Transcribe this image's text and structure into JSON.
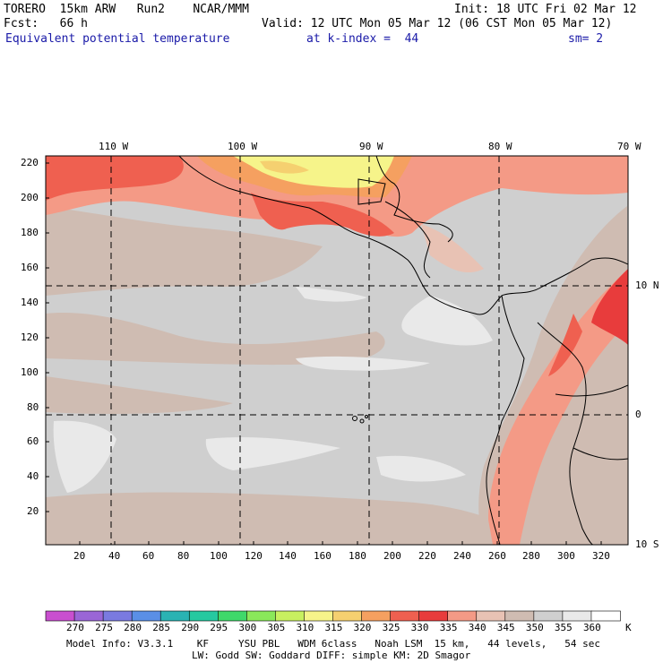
{
  "header": {
    "model": "TORERO  15km ARW   Run2    NCAR/MMM",
    "init": "Init: 18 UTC Fri 02 Mar 12",
    "fcst": "Fcst:   66 h",
    "valid": "Valid: 12 UTC Mon 05 Mar 12 (06 CST Mon 05 Mar 12)",
    "field": "Equivalent potential temperature",
    "kindex": "at k-index =  44",
    "smoothing": "sm= 2"
  },
  "map": {
    "top_lon_labels": [
      "110 W",
      "100 W",
      "90 W",
      "80 W",
      "70 W"
    ],
    "right_lat_labels": [
      "10 N",
      "0",
      "10 S"
    ],
    "x_ticks": [
      "20",
      "40",
      "60",
      "80",
      "100",
      "120",
      "140",
      "160",
      "180",
      "200",
      "220",
      "240",
      "260",
      "280",
      "300",
      "320"
    ],
    "y_ticks": [
      "20",
      "40",
      "60",
      "80",
      "100",
      "120",
      "140",
      "160",
      "180",
      "200",
      "220"
    ]
  },
  "colorbar": {
    "unit": "K",
    "labels": [
      "270",
      "275",
      "280",
      "285",
      "290",
      "295",
      "300",
      "305",
      "310",
      "315",
      "320",
      "325",
      "330",
      "335",
      "340",
      "345",
      "350",
      "355",
      "360"
    ],
    "colors": [
      "#c94fcf",
      "#9a66d6",
      "#7a7ae0",
      "#5a8fe6",
      "#2ab3b3",
      "#26c9a0",
      "#3fd86a",
      "#8ae85a",
      "#c8f060",
      "#f6f48a",
      "#f5d070",
      "#f5a060",
      "#ef6050",
      "#e83c3c",
      "#f49a86",
      "#e8c2b4",
      "#cfbcb2",
      "#cfcfcf",
      "#e9e9e9",
      "#ffffff"
    ]
  },
  "footer": {
    "line1": "Model Info: V3.3.1    KF     YSU PBL   WDM 6class   Noah LSM  15 km,   44 levels,   54 sec",
    "line2": "LW: Godd SW: Goddard DIFF: simple KM: 2D Smagor"
  }
}
